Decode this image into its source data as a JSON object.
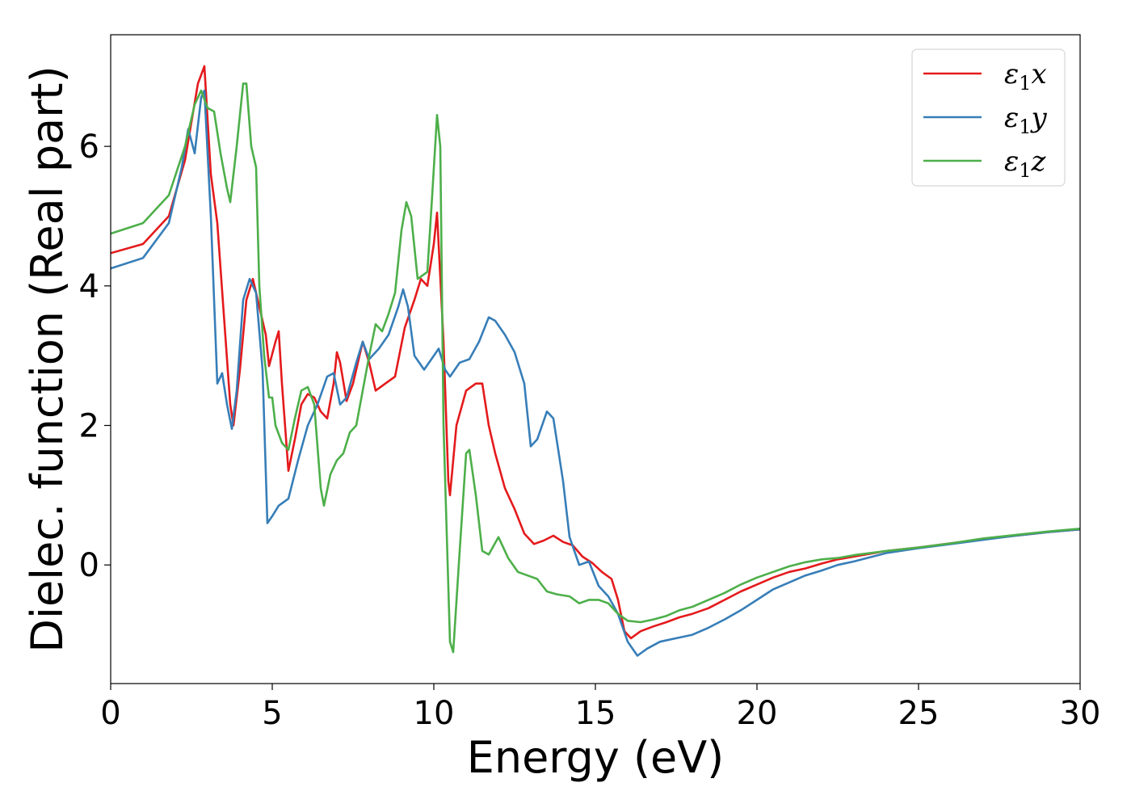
{
  "chart_data": {
    "type": "line",
    "title": "",
    "xlabel": "Energy (eV)",
    "ylabel": "Dielec. function (Real part)",
    "xlim": [
      0,
      30
    ],
    "ylim": [
      -1.7,
      7.6
    ],
    "xticks": [
      0,
      5,
      10,
      15,
      20,
      25,
      30
    ],
    "xtick_labels": [
      "0",
      "5",
      "10",
      "15",
      "20",
      "25",
      "30"
    ],
    "yticks": [
      0,
      2,
      4,
      6
    ],
    "ytick_labels": [
      "0",
      "2",
      "4",
      "6"
    ],
    "grid": false,
    "legend_position": "top-right",
    "series": [
      {
        "name": "ε₁x",
        "legend_base": "ε",
        "legend_sub": "1",
        "legend_suffix": "x",
        "color": "#e41a1c",
        "points": [
          [
            0,
            4.47
          ],
          [
            1,
            4.6
          ],
          [
            1.8,
            5.0
          ],
          [
            2.3,
            5.8
          ],
          [
            2.7,
            6.9
          ],
          [
            2.9,
            7.15
          ],
          [
            3.1,
            5.6
          ],
          [
            3.3,
            4.9
          ],
          [
            3.5,
            3.6
          ],
          [
            3.7,
            2.3
          ],
          [
            3.8,
            2.0
          ],
          [
            4.0,
            2.8
          ],
          [
            4.2,
            3.8
          ],
          [
            4.4,
            4.1
          ],
          [
            4.6,
            3.7
          ],
          [
            4.8,
            3.3
          ],
          [
            4.9,
            2.85
          ],
          [
            5.1,
            3.2
          ],
          [
            5.2,
            3.35
          ],
          [
            5.3,
            2.6
          ],
          [
            5.5,
            1.35
          ],
          [
            5.7,
            1.8
          ],
          [
            5.9,
            2.3
          ],
          [
            6.1,
            2.45
          ],
          [
            6.3,
            2.4
          ],
          [
            6.5,
            2.2
          ],
          [
            6.7,
            2.1
          ],
          [
            6.9,
            2.6
          ],
          [
            7.0,
            3.05
          ],
          [
            7.1,
            2.9
          ],
          [
            7.3,
            2.35
          ],
          [
            7.5,
            2.6
          ],
          [
            7.8,
            3.2
          ],
          [
            8.0,
            2.9
          ],
          [
            8.2,
            2.5
          ],
          [
            8.5,
            2.6
          ],
          [
            8.8,
            2.7
          ],
          [
            9.1,
            3.4
          ],
          [
            9.4,
            3.8
          ],
          [
            9.6,
            4.1
          ],
          [
            9.8,
            4.0
          ],
          [
            10.0,
            4.6
          ],
          [
            10.1,
            5.05
          ],
          [
            10.3,
            3.2
          ],
          [
            10.45,
            1.2
          ],
          [
            10.5,
            1.0
          ],
          [
            10.7,
            2.0
          ],
          [
            11.0,
            2.5
          ],
          [
            11.3,
            2.6
          ],
          [
            11.5,
            2.6
          ],
          [
            11.7,
            2.0
          ],
          [
            11.9,
            1.6
          ],
          [
            12.2,
            1.1
          ],
          [
            12.5,
            0.8
          ],
          [
            12.8,
            0.45
          ],
          [
            13.1,
            0.3
          ],
          [
            13.4,
            0.35
          ],
          [
            13.7,
            0.42
          ],
          [
            14.0,
            0.33
          ],
          [
            14.3,
            0.28
          ],
          [
            14.6,
            0.12
          ],
          [
            14.9,
            0.03
          ],
          [
            15.2,
            -0.1
          ],
          [
            15.5,
            -0.2
          ],
          [
            15.7,
            -0.5
          ],
          [
            15.9,
            -0.95
          ],
          [
            16.1,
            -1.05
          ],
          [
            16.4,
            -0.95
          ],
          [
            16.8,
            -0.88
          ],
          [
            17.2,
            -0.82
          ],
          [
            17.6,
            -0.75
          ],
          [
            18.0,
            -0.7
          ],
          [
            18.5,
            -0.62
          ],
          [
            19.0,
            -0.5
          ],
          [
            19.5,
            -0.38
          ],
          [
            20.0,
            -0.28
          ],
          [
            20.5,
            -0.18
          ],
          [
            21.0,
            -0.1
          ],
          [
            21.5,
            -0.05
          ],
          [
            22.0,
            0.02
          ],
          [
            22.5,
            0.08
          ],
          [
            23.0,
            0.12
          ],
          [
            24.0,
            0.2
          ],
          [
            25.0,
            0.25
          ],
          [
            26.0,
            0.31
          ],
          [
            27.0,
            0.37
          ],
          [
            28.0,
            0.42
          ],
          [
            29.0,
            0.47
          ],
          [
            30.0,
            0.51
          ]
        ]
      },
      {
        "name": "ε₁y",
        "legend_base": "ε",
        "legend_sub": "1",
        "legend_suffix": "y",
        "color": "#377eb8",
        "points": [
          [
            0,
            4.25
          ],
          [
            1,
            4.4
          ],
          [
            1.8,
            4.9
          ],
          [
            2.2,
            5.7
          ],
          [
            2.4,
            6.25
          ],
          [
            2.6,
            5.9
          ],
          [
            2.8,
            6.7
          ],
          [
            2.9,
            6.8
          ],
          [
            3.1,
            5.0
          ],
          [
            3.3,
            2.6
          ],
          [
            3.45,
            2.75
          ],
          [
            3.6,
            2.3
          ],
          [
            3.75,
            1.95
          ],
          [
            3.9,
            2.5
          ],
          [
            4.1,
            3.8
          ],
          [
            4.3,
            4.1
          ],
          [
            4.5,
            3.9
          ],
          [
            4.7,
            2.8
          ],
          [
            4.85,
            0.6
          ],
          [
            5.0,
            0.7
          ],
          [
            5.2,
            0.85
          ],
          [
            5.5,
            0.95
          ],
          [
            5.8,
            1.5
          ],
          [
            6.1,
            2.0
          ],
          [
            6.4,
            2.3
          ],
          [
            6.7,
            2.7
          ],
          [
            6.9,
            2.75
          ],
          [
            7.1,
            2.3
          ],
          [
            7.3,
            2.4
          ],
          [
            7.6,
            2.9
          ],
          [
            7.8,
            3.2
          ],
          [
            8.0,
            2.95
          ],
          [
            8.3,
            3.1
          ],
          [
            8.6,
            3.3
          ],
          [
            8.9,
            3.7
          ],
          [
            9.05,
            3.95
          ],
          [
            9.2,
            3.7
          ],
          [
            9.4,
            3.0
          ],
          [
            9.7,
            2.8
          ],
          [
            10.0,
            3.0
          ],
          [
            10.15,
            3.1
          ],
          [
            10.35,
            2.8
          ],
          [
            10.5,
            2.7
          ],
          [
            10.8,
            2.9
          ],
          [
            11.1,
            2.95
          ],
          [
            11.4,
            3.2
          ],
          [
            11.7,
            3.55
          ],
          [
            11.9,
            3.5
          ],
          [
            12.2,
            3.3
          ],
          [
            12.5,
            3.05
          ],
          [
            12.8,
            2.6
          ],
          [
            13.0,
            1.7
          ],
          [
            13.2,
            1.8
          ],
          [
            13.5,
            2.2
          ],
          [
            13.7,
            2.1
          ],
          [
            14.0,
            1.2
          ],
          [
            14.2,
            0.4
          ],
          [
            14.5,
            0.0
          ],
          [
            14.8,
            0.05
          ],
          [
            15.1,
            -0.3
          ],
          [
            15.4,
            -0.45
          ],
          [
            15.7,
            -0.7
          ],
          [
            16.0,
            -1.1
          ],
          [
            16.3,
            -1.3
          ],
          [
            16.6,
            -1.2
          ],
          [
            17.0,
            -1.1
          ],
          [
            17.5,
            -1.05
          ],
          [
            18.0,
            -1.0
          ],
          [
            18.5,
            -0.9
          ],
          [
            19.0,
            -0.78
          ],
          [
            19.5,
            -0.65
          ],
          [
            20.0,
            -0.5
          ],
          [
            20.5,
            -0.35
          ],
          [
            21.0,
            -0.25
          ],
          [
            21.5,
            -0.15
          ],
          [
            22.0,
            -0.08
          ],
          [
            22.5,
            0.0
          ],
          [
            23.0,
            0.05
          ],
          [
            24.0,
            0.17
          ],
          [
            25.0,
            0.24
          ],
          [
            26.0,
            0.3
          ],
          [
            27.0,
            0.36
          ],
          [
            28.0,
            0.42
          ],
          [
            29.0,
            0.47
          ],
          [
            30.0,
            0.51
          ]
        ]
      },
      {
        "name": "ε₁z",
        "legend_base": "ε",
        "legend_sub": "1",
        "legend_suffix": "z",
        "color": "#4daf4a",
        "points": [
          [
            0,
            4.75
          ],
          [
            1,
            4.9
          ],
          [
            1.8,
            5.3
          ],
          [
            2.3,
            6.0
          ],
          [
            2.6,
            6.6
          ],
          [
            2.8,
            6.8
          ],
          [
            3.0,
            6.55
          ],
          [
            3.2,
            6.5
          ],
          [
            3.4,
            5.9
          ],
          [
            3.6,
            5.4
          ],
          [
            3.7,
            5.2
          ],
          [
            3.9,
            6.0
          ],
          [
            4.1,
            6.9
          ],
          [
            4.2,
            6.9
          ],
          [
            4.35,
            6.0
          ],
          [
            4.5,
            5.7
          ],
          [
            4.6,
            4.0
          ],
          [
            4.75,
            3.0
          ],
          [
            4.9,
            2.4
          ],
          [
            5.0,
            2.4
          ],
          [
            5.1,
            2.0
          ],
          [
            5.3,
            1.75
          ],
          [
            5.5,
            1.65
          ],
          [
            5.7,
            2.1
          ],
          [
            5.9,
            2.5
          ],
          [
            6.1,
            2.55
          ],
          [
            6.3,
            2.3
          ],
          [
            6.5,
            1.1
          ],
          [
            6.6,
            0.85
          ],
          [
            6.8,
            1.3
          ],
          [
            7.0,
            1.5
          ],
          [
            7.2,
            1.6
          ],
          [
            7.4,
            1.9
          ],
          [
            7.6,
            2.0
          ],
          [
            7.8,
            2.5
          ],
          [
            8.0,
            3.0
          ],
          [
            8.2,
            3.45
          ],
          [
            8.4,
            3.35
          ],
          [
            8.6,
            3.6
          ],
          [
            8.8,
            3.9
          ],
          [
            9.0,
            4.8
          ],
          [
            9.15,
            5.2
          ],
          [
            9.3,
            5.0
          ],
          [
            9.5,
            4.1
          ],
          [
            9.8,
            4.2
          ],
          [
            9.95,
            5.3
          ],
          [
            10.1,
            6.45
          ],
          [
            10.2,
            6.0
          ],
          [
            10.3,
            2.0
          ],
          [
            10.5,
            -1.1
          ],
          [
            10.6,
            -1.25
          ],
          [
            10.8,
            0.2
          ],
          [
            11.0,
            1.6
          ],
          [
            11.1,
            1.65
          ],
          [
            11.3,
            1.0
          ],
          [
            11.5,
            0.2
          ],
          [
            11.7,
            0.15
          ],
          [
            12.0,
            0.4
          ],
          [
            12.3,
            0.1
          ],
          [
            12.6,
            -0.1
          ],
          [
            12.9,
            -0.15
          ],
          [
            13.2,
            -0.2
          ],
          [
            13.5,
            -0.38
          ],
          [
            13.8,
            -0.42
          ],
          [
            14.2,
            -0.45
          ],
          [
            14.5,
            -0.55
          ],
          [
            14.8,
            -0.5
          ],
          [
            15.1,
            -0.5
          ],
          [
            15.4,
            -0.55
          ],
          [
            15.7,
            -0.7
          ],
          [
            16.0,
            -0.8
          ],
          [
            16.4,
            -0.82
          ],
          [
            16.8,
            -0.78
          ],
          [
            17.2,
            -0.73
          ],
          [
            17.6,
            -0.65
          ],
          [
            18.0,
            -0.6
          ],
          [
            18.5,
            -0.5
          ],
          [
            19.0,
            -0.4
          ],
          [
            19.5,
            -0.28
          ],
          [
            20.0,
            -0.18
          ],
          [
            20.5,
            -0.1
          ],
          [
            21.0,
            -0.02
          ],
          [
            21.5,
            0.04
          ],
          [
            22.0,
            0.08
          ],
          [
            22.5,
            0.1
          ],
          [
            23.0,
            0.14
          ],
          [
            24.0,
            0.2
          ],
          [
            25.0,
            0.25
          ],
          [
            26.0,
            0.31
          ],
          [
            27.0,
            0.38
          ],
          [
            28.0,
            0.43
          ],
          [
            29.0,
            0.48
          ],
          [
            30.0,
            0.52
          ]
        ]
      }
    ]
  }
}
